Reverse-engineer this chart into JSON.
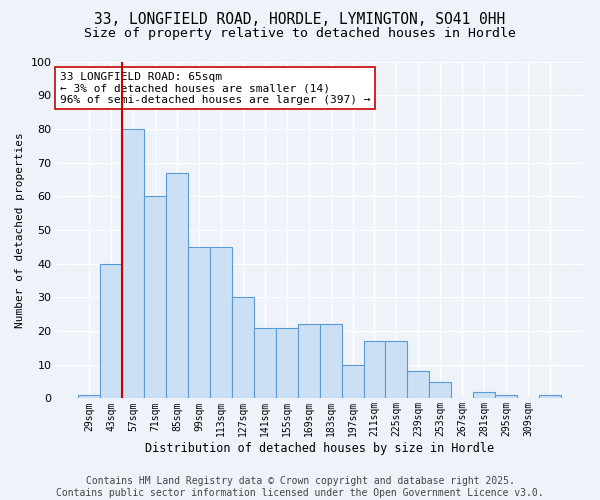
{
  "title_line1": "33, LONGFIELD ROAD, HORDLE, LYMINGTON, SO41 0HH",
  "title_line2": "Size of property relative to detached houses in Hordle",
  "xlabel": "Distribution of detached houses by size in Hordle",
  "ylabel": "Number of detached properties",
  "bar_values": [
    1,
    40,
    80,
    60,
    67,
    45,
    45,
    30,
    21,
    21,
    22,
    22,
    10,
    17,
    17,
    8,
    5,
    0,
    2,
    1,
    0,
    1
  ],
  "categories": [
    "29sqm",
    "43sqm",
    "57sqm",
    "71sqm",
    "85sqm",
    "99sqm",
    "113sqm",
    "127sqm",
    "141sqm",
    "155sqm",
    "169sqm",
    "183sqm",
    "197sqm",
    "211sqm",
    "225sqm",
    "239sqm",
    "253sqm",
    "267sqm",
    "281sqm",
    "295sqm",
    "309sqm",
    ""
  ],
  "bar_color": "#cce0f5",
  "bar_edge_color": "#5b9bd5",
  "background_color": "#eef2f9",
  "grid_color": "#ffffff",
  "vline_x": 1.5,
  "vline_color": "#cc0000",
  "annotation_text": "33 LONGFIELD ROAD: 65sqm\n← 3% of detached houses are smaller (14)\n96% of semi-detached houses are larger (397) →",
  "annotation_box_color": "#ffffff",
  "annotation_box_edge": "#cc0000",
  "ylim": [
    0,
    100
  ],
  "yticks": [
    0,
    10,
    20,
    30,
    40,
    50,
    60,
    70,
    80,
    90,
    100
  ],
  "footer_text": "Contains HM Land Registry data © Crown copyright and database right 2025.\nContains public sector information licensed under the Open Government Licence v3.0.",
  "title_fontsize": 10.5,
  "subtitle_fontsize": 9.5,
  "annotation_fontsize": 8,
  "footer_fontsize": 7
}
